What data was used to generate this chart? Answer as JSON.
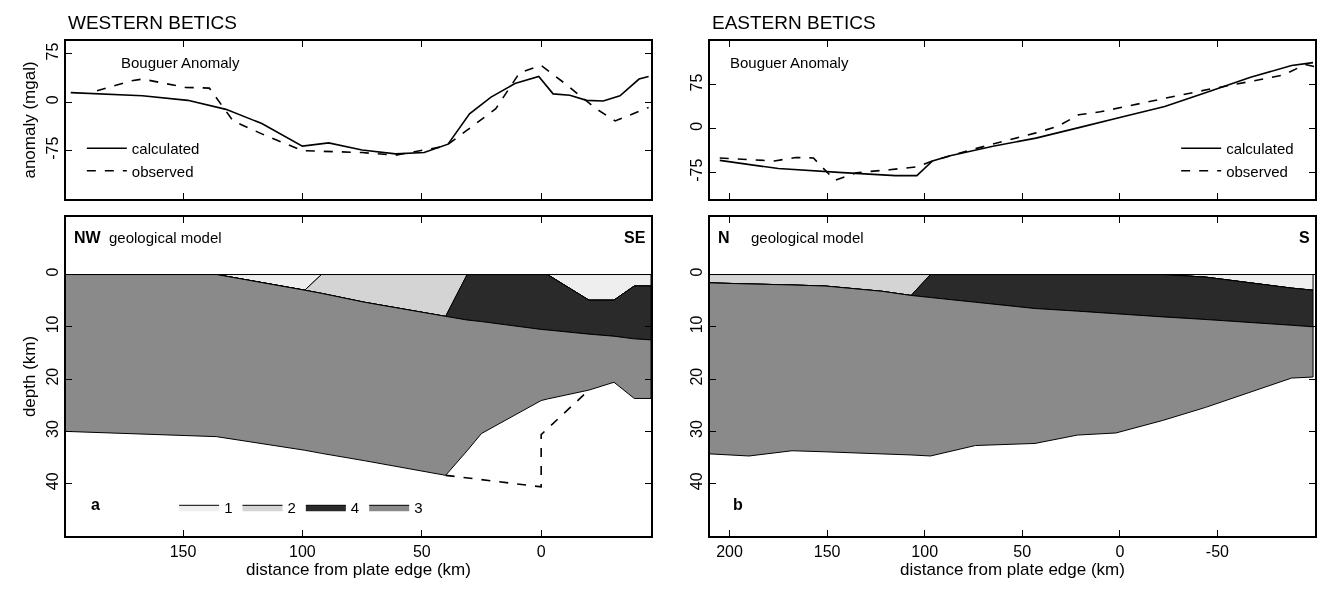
{
  "chart_data": [
    {
      "type": "line",
      "title": "WESTERN BETICS",
      "ylabel": "anomaly (mgal)",
      "annotations": [
        "Bouguer Anomaly"
      ],
      "xlim": [
        199,
        -46
      ],
      "xticks": [
        150,
        100,
        50,
        0
      ],
      "ylim": [
        -150,
        95
      ],
      "yticks": [
        75,
        0,
        -75
      ],
      "tick_labels": "y",
      "legend": "bottom left",
      "series": [
        {
          "name": "calculated",
          "color": "#000000",
          "line_style": "solid",
          "x": [
            197,
            167,
            148,
            132,
            117,
            100,
            89,
            75,
            61,
            49,
            39,
            30,
            21,
            11,
            1,
            -5,
            -12,
            -19,
            -26,
            -33,
            -41,
            -45
          ],
          "values": [
            15,
            10,
            3,
            -11,
            -33,
            -68,
            -63,
            -74,
            -80,
            -78,
            -65,
            -18,
            8,
            29,
            40,
            13,
            11,
            3,
            2,
            10,
            36,
            40
          ]
        },
        {
          "name": "observed",
          "color": "#000000",
          "line_style": "dashed",
          "x": [
            186,
            172,
            167,
            149,
            139,
            129,
            117,
            100,
            75,
            61,
            40,
            19,
            9,
            0,
            -10,
            -23,
            -31,
            -45
          ],
          "values": [
            18,
            33,
            36,
            23,
            22,
            -29,
            -49,
            -75,
            -78,
            -82,
            -68,
            -10,
            46,
            57,
            29,
            -10,
            -29,
            -8
          ]
        }
      ]
    },
    {
      "type": "area",
      "stacked": true,
      "xlabel": "distance from plate edge (km)",
      "ylabel": "depth (km)",
      "annotations": [
        "NW",
        "geological model",
        "SE",
        "a"
      ],
      "xlim": [
        199,
        -46
      ],
      "xticks": [
        150,
        100,
        50,
        0
      ],
      "ylim": [
        50,
        -11
      ],
      "yticks": [
        0,
        10,
        20,
        30,
        40
      ],
      "legend": "bottom left",
      "ref_lines": [
        {
          "axis": "y",
          "value": 0,
          "color": "#000000"
        }
      ],
      "x": [
        199,
        136,
        99,
        92,
        74,
        40,
        31,
        25,
        0,
        -2.6,
        -20,
        -30.5,
        -39,
        -46
      ],
      "series": [
        {
          "name": "1",
          "color": "#eeeeee",
          "values": [
            0,
            0,
            3.0,
            0,
            0,
            0,
            0,
            0,
            0,
            0,
            4.9,
            4.9,
            2.2,
            2.2
          ]
        },
        {
          "name": "2",
          "color": "#d4d4d4",
          "values": [
            0,
            0,
            0,
            3.6,
            5.3,
            8.0,
            0,
            0,
            0,
            0,
            0,
            0,
            0,
            0
          ]
        },
        {
          "name": "4",
          "color": "#2a2a2a",
          "values": [
            0,
            0,
            0,
            0,
            0,
            0,
            8.7,
            9.0,
            10.5,
            10.6,
            6.5,
            6.9,
            10.1,
            10.3
          ]
        },
        {
          "name": "3",
          "color": "#8a8a8a",
          "values": [
            30.0,
            31.0,
            30.6,
            30.6,
            30.3,
            30.4,
            25.0,
            21.4,
            13.6,
            13.2,
            10.7,
            8.8,
            11.4,
            11.2
          ]
        },
        {
          "type": "line",
          "color": "#000000",
          "line_style": "dashed",
          "x": [
            40,
            0,
            0,
            -20
          ],
          "values": [
            38.4,
            40.6,
            30.6,
            22.1
          ]
        }
      ]
    },
    {
      "type": "line",
      "title": "EASTERN BETICS",
      "annotations": [
        "Bouguer Anomaly"
      ],
      "xlim": [
        210,
        -100
      ],
      "xticks": [
        200,
        150,
        100,
        50,
        0,
        -50
      ],
      "ylim": [
        -120,
        150
      ],
      "yticks": [
        75,
        0,
        -75
      ],
      "tick_labels": "y",
      "legend": "bottom right",
      "series": [
        {
          "name": "calculated",
          "color": "#000000",
          "line_style": "solid",
          "x": [
            205,
            175,
            142,
            115,
            104,
            96,
            87,
            65,
            43,
            21,
            -1,
            -23,
            -45,
            -67,
            -88,
            -99
          ],
          "values": [
            -54,
            -68,
            -75,
            -80,
            -80,
            -55,
            -46,
            -30,
            -16,
            2,
            20,
            38,
            63,
            88,
            108,
            113
          ]
        },
        {
          "name": "observed",
          "color": "#000000",
          "line_style": "dashed",
          "x": [
            205,
            177,
            166,
            157,
            146,
            135,
            118,
            104,
            96,
            74,
            43,
            32,
            21,
            10,
            -23,
            -45,
            -67,
            -84,
            -95,
            -100
          ],
          "values": [
            -50,
            -55,
            -49,
            -50,
            -88,
            -75,
            -70,
            -65,
            -55,
            -34,
            -7,
            4,
            24,
            29,
            52,
            67,
            81,
            92,
            110,
            106
          ]
        }
      ]
    },
    {
      "type": "area",
      "stacked": true,
      "xlabel": "distance from plate edge (km)",
      "annotations": [
        "N",
        "geological model",
        "S",
        "b"
      ],
      "xlim": [
        210,
        -100
      ],
      "xticks": [
        200,
        150,
        100,
        50,
        0,
        -50
      ],
      "ylim": [
        50,
        -11
      ],
      "yticks": [
        0,
        10,
        20,
        30,
        40
      ],
      "ref_lines": [
        {
          "axis": "y",
          "value": 0,
          "color": "#000000"
        }
      ],
      "x": [
        210,
        190,
        168,
        151,
        122,
        107,
        97,
        74,
        43.5,
        21.7,
        2,
        -22,
        -44,
        -88,
        -99
      ],
      "series": [
        {
          "color": "#eeeeee",
          "values": [
            0,
            0,
            0,
            0,
            0,
            0,
            0,
            0,
            0,
            0,
            0,
            0,
            0.5,
            2.6,
            3.0
          ]
        },
        {
          "color": "#d4d4d4",
          "values": [
            1.6,
            1.8,
            2.0,
            2.2,
            3.2,
            4.0,
            0,
            0,
            0,
            0,
            0,
            0,
            0,
            0,
            0
          ]
        },
        {
          "color": "#2a2a2a",
          "values": [
            0,
            0,
            0,
            0,
            0,
            0,
            4.4,
            5.3,
            6.5,
            7.0,
            7.5,
            8.1,
            8.1,
            7.1,
            7.0
          ]
        },
        {
          "color": "#8a8a8a",
          "values": [
            32.7,
            32.9,
            31.7,
            31.7,
            31.1,
            30.5,
            30.3,
            27.4,
            25.8,
            23.7,
            22.8,
            19.8,
            16.8,
            10.1,
            9.6
          ]
        }
      ]
    }
  ]
}
